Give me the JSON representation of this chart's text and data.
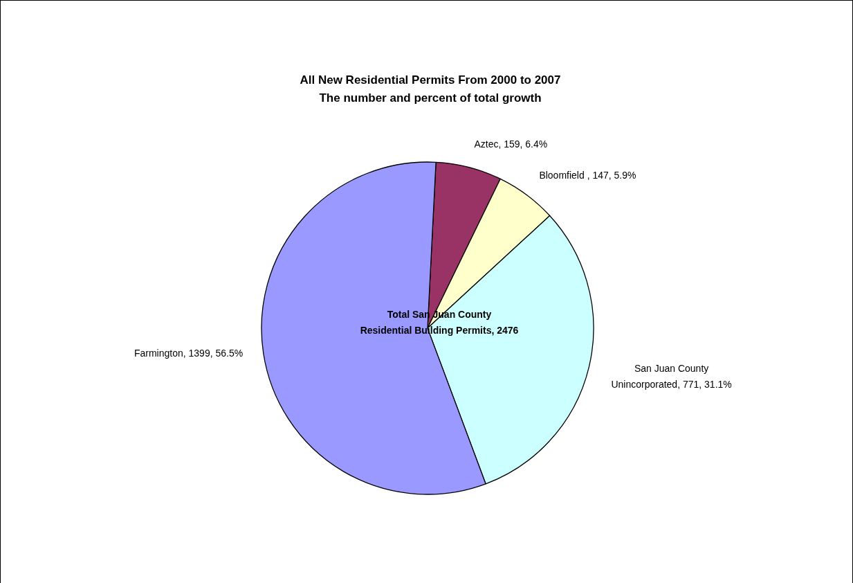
{
  "chart_data": {
    "type": "pie",
    "title": "All New Residential Permits From 2000 to 2007",
    "subtitle": "The number and percent of total growth",
    "categories": [
      "Aztec",
      "Bloomfield ",
      "San Juan County Unincorporated",
      "Farmington"
    ],
    "values": [
      159,
      147,
      771,
      1399
    ],
    "value_labels": [
      "159, 6.4%",
      "147, 5.9%",
      "771, 31.1%",
      "1399, 56.5%"
    ],
    "colors": [
      "#993366",
      "#ffffcc",
      "#ccffff",
      "#9999ff"
    ],
    "annotations": [
      "Total San Juan County\nResidential Building Permits, 2476"
    ]
  }
}
